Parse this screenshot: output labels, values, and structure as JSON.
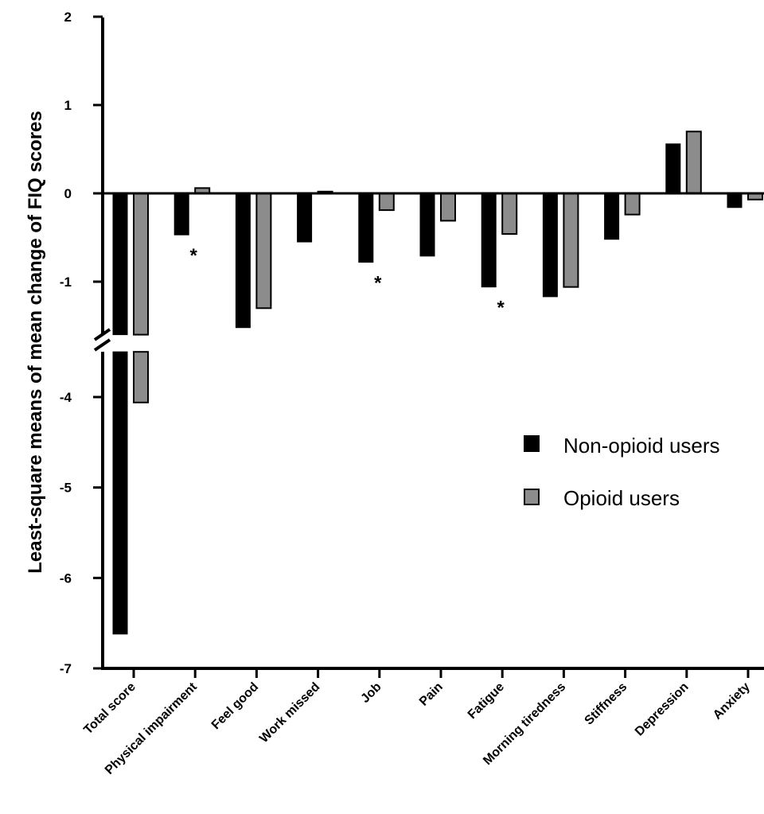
{
  "chart_data": {
    "type": "bar",
    "title": "",
    "ylabel": "Least-square means of mean change of FIQ scores",
    "xlabel": "",
    "categories": [
      "Total score",
      "Physical impairment",
      "Feel good",
      "Work missed",
      "Job",
      "Pain",
      "Fatigue",
      "Morning tiredness",
      "Stiffness",
      "Depression",
      "Anxiety"
    ],
    "series": [
      {
        "name": "Non-opioid users",
        "color": "#000000",
        "values": [
          -6.62,
          -0.47,
          -1.52,
          -0.55,
          -0.78,
          -0.71,
          -1.06,
          -1.17,
          -0.52,
          0.56,
          -0.16
        ]
      },
      {
        "name": "Opioid users",
        "color": "#8c8c8c",
        "values": [
          -4.06,
          0.06,
          -1.3,
          0.02,
          -0.19,
          -0.31,
          -0.46,
          -1.06,
          -0.24,
          0.7,
          -0.07
        ]
      }
    ],
    "significance_marks": [
      "",
      "*",
      "",
      "",
      "*",
      "",
      "*",
      "",
      "",
      "",
      ""
    ],
    "significance_symbol": "*",
    "y_ticks": [
      "2",
      "1",
      "0",
      "-1",
      "-4",
      "-5",
      "-6",
      "-7"
    ],
    "ylim_upper": [
      -1.6,
      2
    ],
    "ylim_lower": [
      -7,
      -3.5
    ],
    "axis_break": true,
    "legend_position": "right-middle",
    "grid": false
  }
}
